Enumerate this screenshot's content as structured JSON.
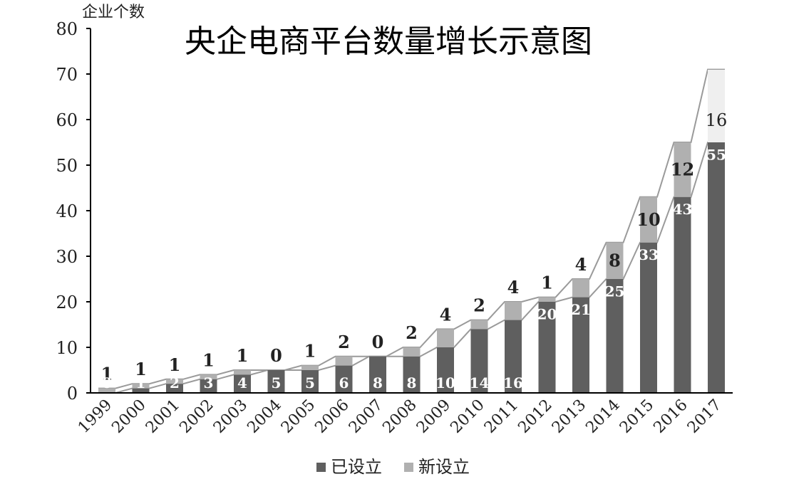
{
  "chart_data": {
    "type": "bar",
    "stacked": true,
    "title": "央企电商平台数量增长示意图",
    "ylabel": "企业个数",
    "xlabel": "",
    "ylim": [
      0,
      80
    ],
    "yticks": [
      0,
      10,
      20,
      30,
      40,
      50,
      60,
      70,
      80
    ],
    "categories": [
      "1999",
      "2000",
      "2001",
      "2002",
      "2003",
      "2004",
      "2005",
      "2006",
      "2007",
      "2008",
      "2009",
      "2010",
      "2011",
      "2012",
      "2013",
      "2014",
      "2015",
      "2016",
      "2017"
    ],
    "series": [
      {
        "name": "已设立",
        "color": "#5f5f5f",
        "values": [
          0,
          1,
          2,
          3,
          4,
          5,
          5,
          6,
          8,
          8,
          10,
          14,
          16,
          20,
          21,
          25,
          33,
          43,
          55
        ]
      },
      {
        "name": "新设立",
        "color": "#b0b0b0",
        "values": [
          1,
          1,
          1,
          1,
          1,
          0,
          1,
          2,
          0,
          2,
          4,
          2,
          4,
          1,
          4,
          8,
          10,
          12,
          16
        ]
      }
    ],
    "legend_position": "bottom",
    "grid": false
  }
}
